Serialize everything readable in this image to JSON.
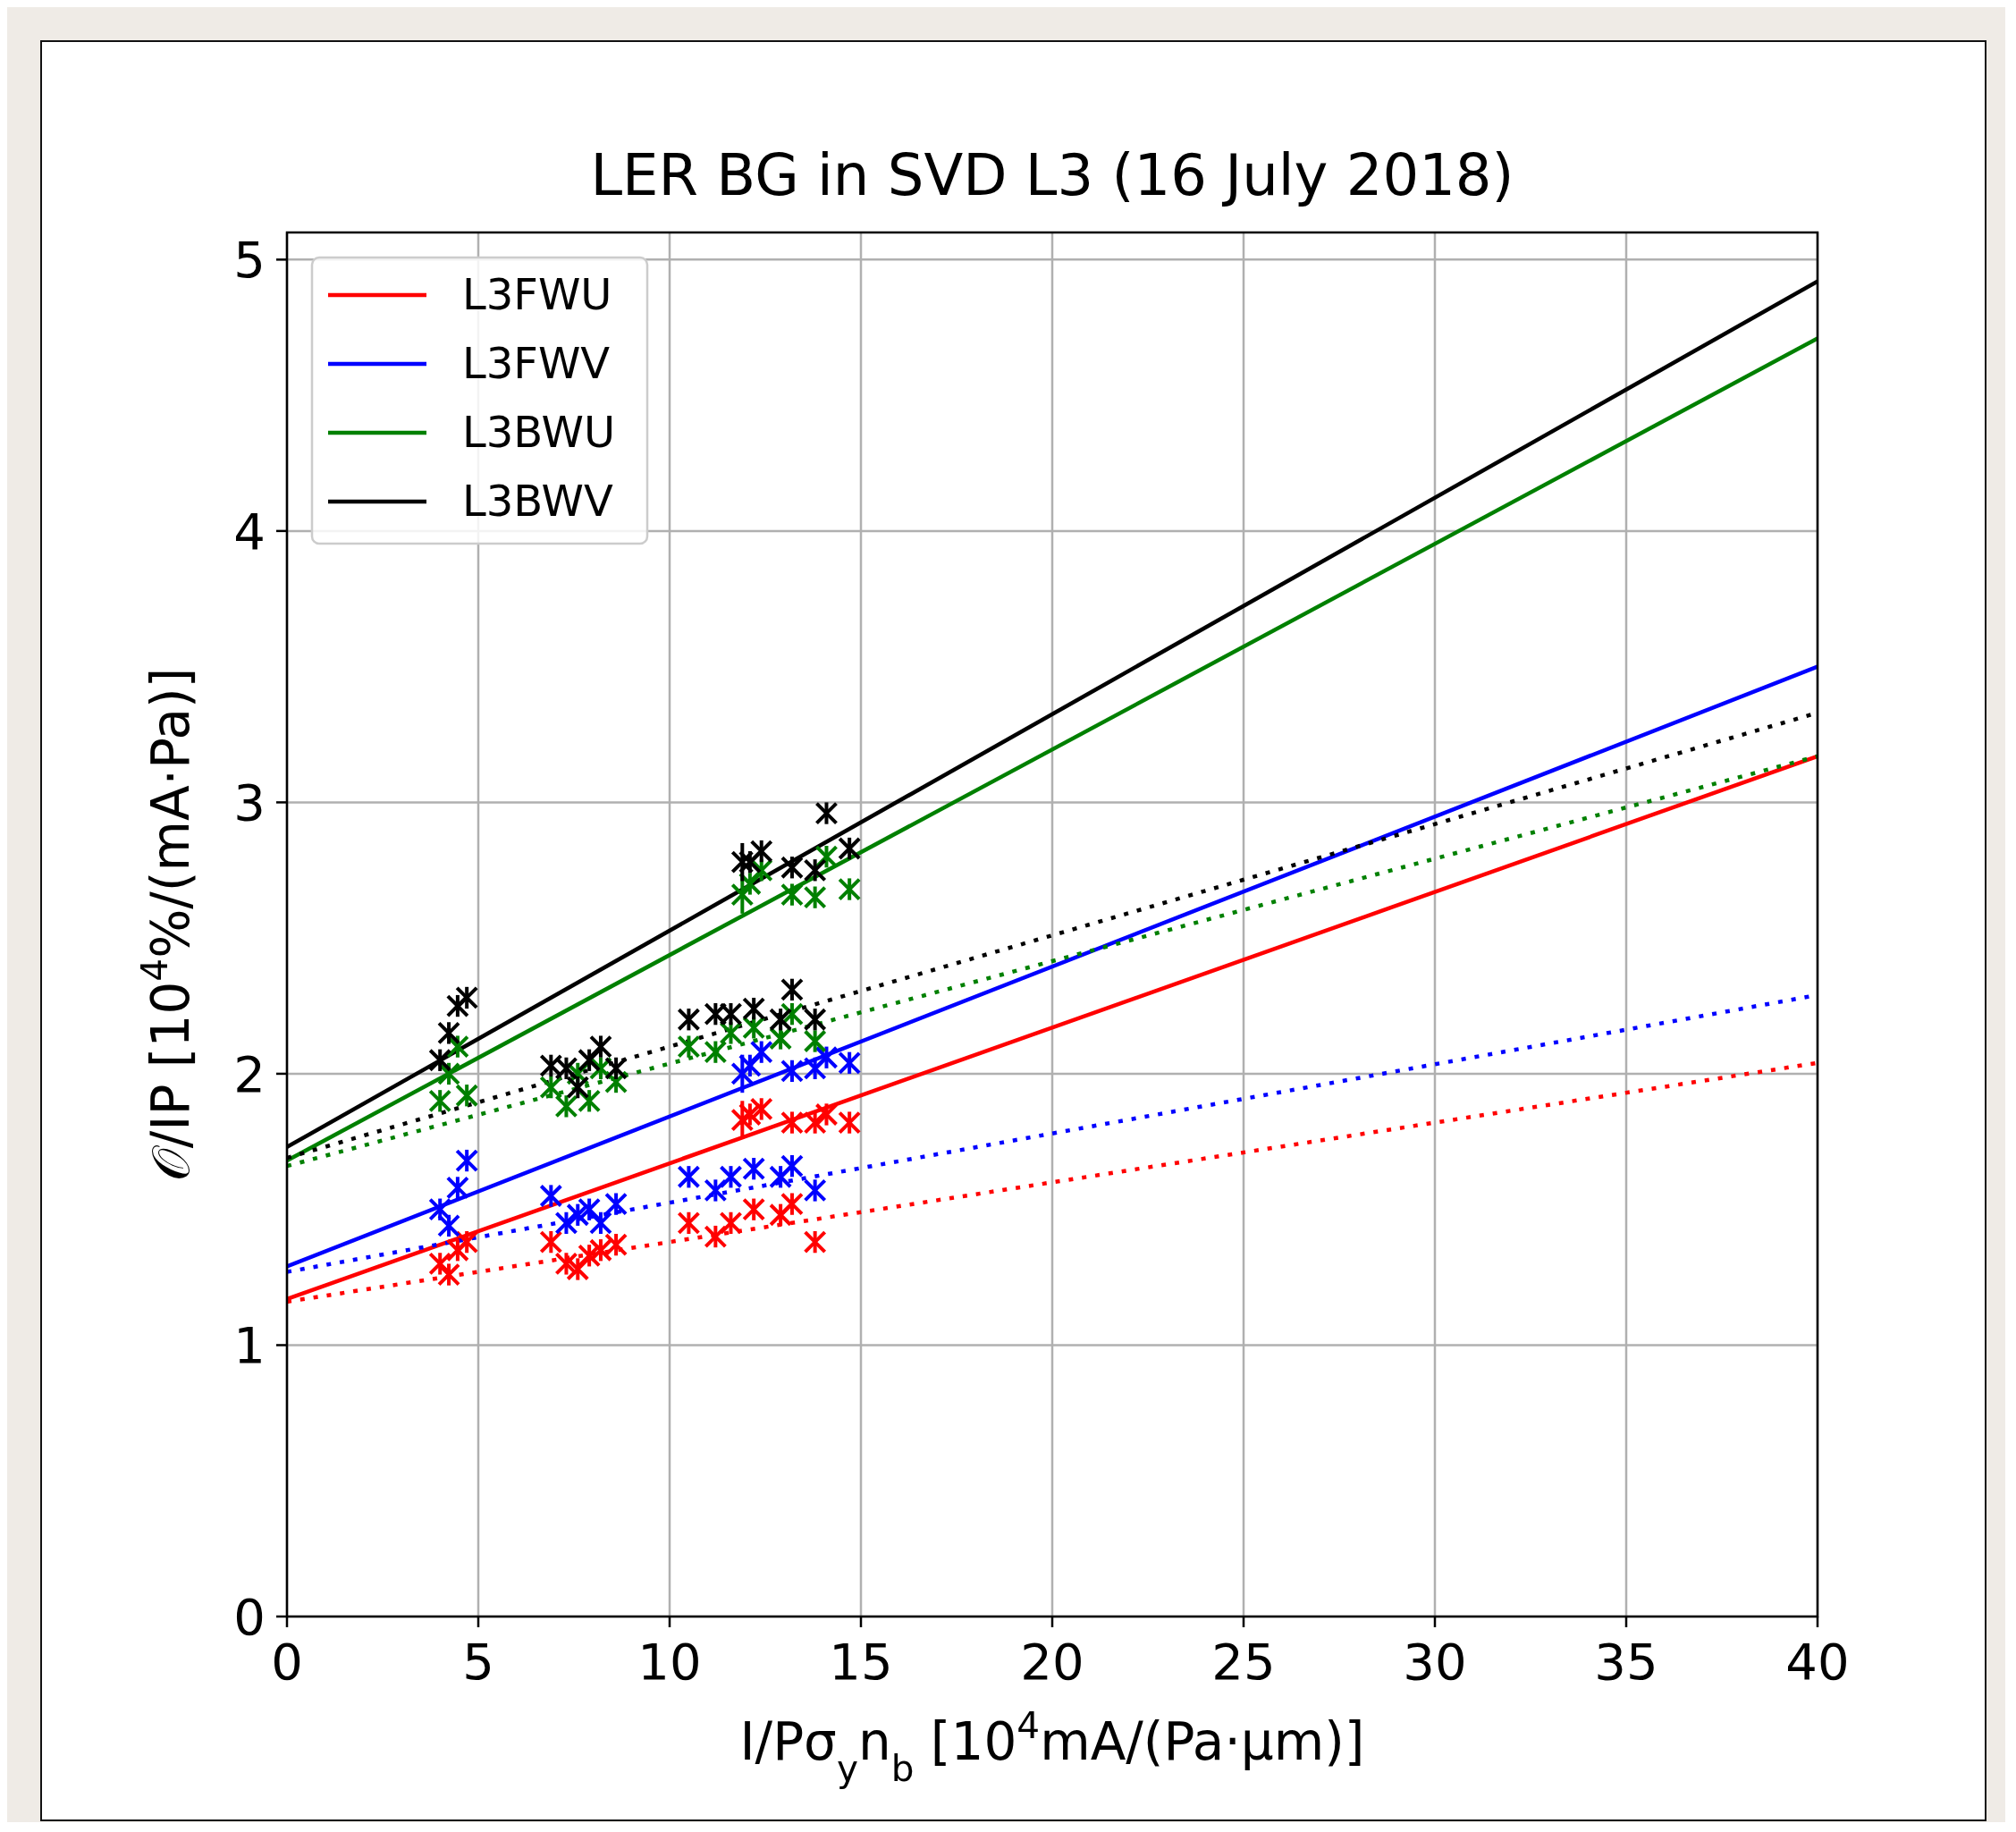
{
  "chart_data": {
    "type": "scatter",
    "title": "LER BG in SVD L3 (16 July 2018)",
    "xlabel": "I/Pσ$_{y}$n$_{b}$ [10$^{4}$mA/(Pa·µm)]",
    "ylabel": "𝒪/IP [10$^{4}$%/(mA·Pa)]",
    "xlim": [
      0,
      40
    ],
    "ylim": [
      0,
      5.1
    ],
    "xticks": [
      0,
      5,
      10,
      15,
      20,
      25,
      30,
      35,
      40
    ],
    "yticks": [
      0,
      1,
      2,
      3,
      4,
      5
    ],
    "grid": true,
    "legend": "top left",
    "series": [
      {
        "name": "L3FWU",
        "type": "line",
        "color": "#ff0000",
        "line_style": "solid",
        "x": [
          0,
          40
        ],
        "values": [
          1.17,
          3.17
        ]
      },
      {
        "name": "L3FWV",
        "type": "line",
        "color": "#0000ff",
        "line_style": "solid",
        "x": [
          0,
          40
        ],
        "values": [
          1.29,
          3.5
        ]
      },
      {
        "name": "L3BWU",
        "type": "line",
        "color": "#008000",
        "line_style": "solid",
        "x": [
          0,
          40
        ],
        "values": [
          1.68,
          4.71
        ]
      },
      {
        "name": "L3BWV",
        "type": "line",
        "color": "#000000",
        "line_style": "solid",
        "x": [
          0,
          40
        ],
        "values": [
          1.73,
          4.92
        ]
      },
      {
        "type": "line",
        "color": "#ff0000",
        "line_style": "dotted",
        "x": [
          0,
          40
        ],
        "values": [
          1.16,
          2.04
        ]
      },
      {
        "type": "line",
        "color": "#0000ff",
        "line_style": "dotted",
        "x": [
          0,
          40
        ],
        "values": [
          1.27,
          2.29
        ]
      },
      {
        "type": "line",
        "color": "#008000",
        "line_style": "dotted",
        "x": [
          0,
          40
        ],
        "values": [
          1.66,
          3.17
        ]
      },
      {
        "type": "line",
        "color": "#000000",
        "line_style": "dotted",
        "x": [
          0,
          40
        ],
        "values": [
          1.69,
          3.33
        ]
      },
      {
        "color": "#ff0000",
        "marker": "cross",
        "x": [
          4.0,
          4.23,
          4.46,
          4.7,
          6.9,
          7.3,
          7.6,
          7.9,
          8.2,
          8.6,
          10.5,
          11.2,
          11.6,
          12.2,
          12.9,
          13.2,
          13.8,
          11.9,
          12.1,
          12.4,
          13.2,
          13.8,
          14.1,
          14.7
        ],
        "values": [
          1.3,
          1.26,
          1.35,
          1.38,
          1.38,
          1.3,
          1.28,
          1.33,
          1.35,
          1.37,
          1.45,
          1.4,
          1.45,
          1.5,
          1.48,
          1.52,
          1.38,
          1.83,
          1.85,
          1.87,
          1.82,
          1.82,
          1.85,
          1.82
        ],
        "errors": [
          0.04,
          0.04,
          0.04,
          0.04,
          0.04,
          0.04,
          0.04,
          0.04,
          0.04,
          0.04,
          0.04,
          0.04,
          0.04,
          0.04,
          0.04,
          0.04,
          0.04,
          0.07,
          0.04,
          0.04,
          0.04,
          0.04,
          0.04,
          0.04
        ]
      },
      {
        "color": "#0000ff",
        "marker": "cross",
        "x": [
          4.0,
          4.23,
          4.46,
          4.7,
          6.9,
          7.3,
          7.6,
          7.9,
          8.2,
          8.6,
          10.5,
          11.2,
          11.6,
          12.2,
          12.9,
          13.2,
          13.8,
          11.9,
          12.1,
          12.4,
          13.2,
          13.8,
          14.1,
          14.7
        ],
        "values": [
          1.5,
          1.44,
          1.58,
          1.68,
          1.55,
          1.45,
          1.48,
          1.5,
          1.45,
          1.52,
          1.62,
          1.57,
          1.62,
          1.65,
          1.62,
          1.66,
          1.57,
          2.0,
          2.03,
          2.08,
          2.01,
          2.02,
          2.06,
          2.04
        ],
        "errors": [
          0.04,
          0.04,
          0.04,
          0.04,
          0.04,
          0.04,
          0.04,
          0.04,
          0.04,
          0.04,
          0.04,
          0.04,
          0.04,
          0.04,
          0.04,
          0.04,
          0.04,
          0.07,
          0.04,
          0.04,
          0.04,
          0.04,
          0.04,
          0.04
        ]
      },
      {
        "color": "#008000",
        "marker": "cross",
        "x": [
          4.0,
          4.23,
          4.46,
          4.7,
          6.9,
          7.3,
          7.6,
          7.9,
          8.2,
          8.6,
          10.5,
          11.2,
          11.6,
          12.2,
          12.9,
          13.2,
          13.8,
          11.9,
          12.1,
          12.4,
          13.2,
          13.8,
          14.1,
          14.7
        ],
        "values": [
          1.9,
          2.0,
          2.1,
          1.92,
          1.95,
          1.88,
          2.0,
          1.9,
          2.02,
          1.97,
          2.1,
          2.08,
          2.15,
          2.17,
          2.13,
          2.22,
          2.12,
          2.66,
          2.7,
          2.75,
          2.66,
          2.65,
          2.8,
          2.68
        ],
        "errors": [
          0.04,
          0.04,
          0.04,
          0.04,
          0.04,
          0.04,
          0.04,
          0.04,
          0.04,
          0.04,
          0.04,
          0.04,
          0.04,
          0.04,
          0.04,
          0.04,
          0.04,
          0.07,
          0.04,
          0.04,
          0.04,
          0.04,
          0.04,
          0.04
        ]
      },
      {
        "color": "#000000",
        "marker": "cross",
        "x": [
          4.0,
          4.23,
          4.46,
          4.7,
          6.9,
          7.3,
          7.6,
          7.9,
          8.2,
          8.6,
          10.5,
          11.2,
          11.6,
          12.2,
          12.9,
          13.2,
          13.8,
          11.9,
          12.1,
          12.4,
          13.2,
          13.8,
          14.1,
          14.7
        ],
        "values": [
          2.05,
          2.15,
          2.25,
          2.28,
          2.03,
          2.02,
          1.95,
          2.05,
          2.1,
          2.02,
          2.2,
          2.22,
          2.22,
          2.24,
          2.2,
          2.31,
          2.2,
          2.78,
          2.78,
          2.82,
          2.76,
          2.75,
          2.96,
          2.83
        ],
        "errors": [
          0.04,
          0.04,
          0.04,
          0.04,
          0.04,
          0.04,
          0.04,
          0.04,
          0.04,
          0.04,
          0.04,
          0.04,
          0.04,
          0.04,
          0.04,
          0.04,
          0.04,
          0.07,
          0.04,
          0.04,
          0.04,
          0.04,
          0.04,
          0.04
        ]
      }
    ]
  }
}
